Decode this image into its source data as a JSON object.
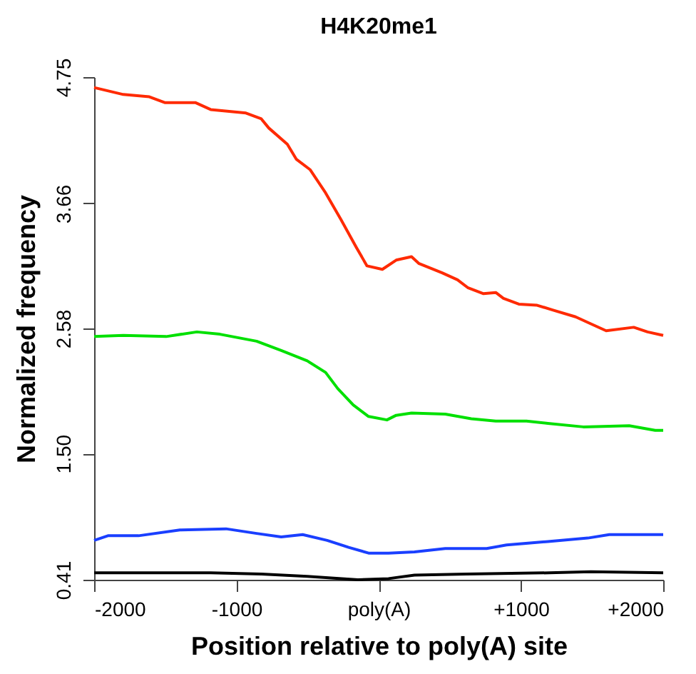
{
  "chart_data": {
    "type": "line",
    "title": "H4K20me1",
    "xlabel": "Position relative to poly(A) site",
    "ylabel": "Normalized frequency",
    "xlim": [
      -2000,
      2000
    ],
    "ylim": [
      0.41,
      4.75
    ],
    "xticks": [
      -2000,
      -1000,
      {
        "value": 0,
        "label": "poly(A)"
      },
      {
        "value": 1000,
        "label": "+1000"
      },
      {
        "value": 2000,
        "label": "+2000"
      }
    ],
    "yticks": [
      0.41,
      {
        "value": 1.5,
        "label": "1.50"
      },
      2.58,
      3.66,
      4.75
    ],
    "grid": false,
    "legend": false,
    "marker": "none",
    "line_style": "solid",
    "series": [
      {
        "color": "#ff2a00",
        "x": [
          -2000,
          -1795,
          -1612,
          -1504,
          -1289,
          -1181,
          -933,
          -825,
          -772,
          -642,
          -578,
          -481,
          -373,
          -265,
          -157,
          -82,
          26,
          123,
          231,
          284,
          446,
          554,
          629,
          737,
          823,
          877,
          985,
          1114,
          1222,
          1384,
          1491,
          1599,
          1793,
          1890,
          2000
        ],
        "values": [
          4.66,
          4.6,
          4.58,
          4.53,
          4.53,
          4.47,
          4.44,
          4.39,
          4.31,
          4.17,
          4.04,
          3.95,
          3.75,
          3.52,
          3.28,
          3.12,
          3.09,
          3.17,
          3.2,
          3.14,
          3.06,
          3.0,
          2.93,
          2.88,
          2.89,
          2.84,
          2.79,
          2.78,
          2.74,
          2.68,
          2.62,
          2.56,
          2.59,
          2.55,
          2.52
        ]
      },
      {
        "color": "#00e000",
        "x": [
          -2000,
          -1795,
          -1494,
          -1278,
          -1116,
          -858,
          -685,
          -502,
          -373,
          -287,
          -179,
          -71,
          58,
          123,
          231,
          468,
          651,
          823,
          1039,
          1190,
          1438,
          1761,
          1944,
          2000
        ],
        "values": [
          2.51,
          2.52,
          2.51,
          2.55,
          2.53,
          2.47,
          2.39,
          2.3,
          2.2,
          2.06,
          1.92,
          1.82,
          1.79,
          1.83,
          1.85,
          1.84,
          1.8,
          1.78,
          1.78,
          1.76,
          1.73,
          1.74,
          1.7,
          1.7
        ]
      },
      {
        "color": "#1a3fff",
        "x": [
          -2000,
          -1903,
          -1688,
          -1397,
          -1073,
          -858,
          -685,
          -534,
          -362,
          -211,
          -71,
          69,
          252,
          468,
          759,
          899,
          1190,
          1470,
          1621,
          1793,
          2000
        ],
        "values": [
          0.75,
          0.79,
          0.79,
          0.84,
          0.85,
          0.81,
          0.78,
          0.8,
          0.75,
          0.69,
          0.64,
          0.64,
          0.65,
          0.68,
          0.68,
          0.71,
          0.74,
          0.77,
          0.8,
          0.8,
          0.8
        ]
      },
      {
        "color": "#000000",
        "x": [
          -2000,
          -1181,
          -825,
          -502,
          -147,
          69,
          252,
          619,
          1200,
          1491,
          2000
        ],
        "values": [
          0.47,
          0.47,
          0.46,
          0.44,
          0.41,
          0.42,
          0.45,
          0.46,
          0.47,
          0.48,
          0.47
        ]
      }
    ]
  }
}
